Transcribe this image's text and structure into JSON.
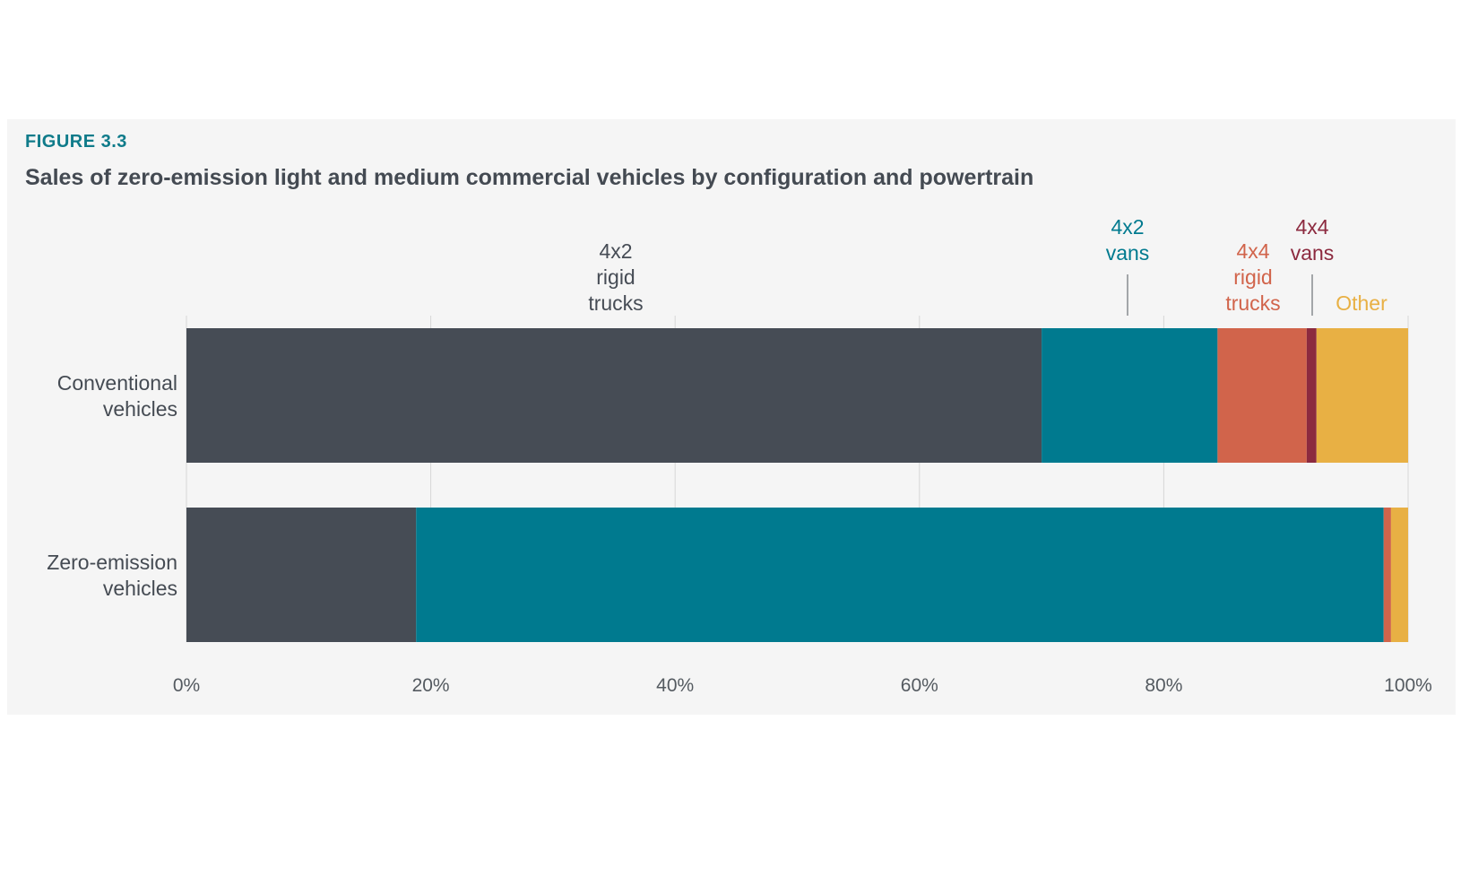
{
  "figure": {
    "label": "FIGURE 3.3",
    "title": "Sales of zero-emission light and medium commercial vehicles by configuration and powertrain"
  },
  "chart_data": {
    "type": "bar",
    "orientation": "horizontal",
    "stacked": true,
    "percent": true,
    "categories": [
      "Conventional vehicles",
      "Zero-emission vehicles"
    ],
    "category_lines": [
      [
        "Conventional",
        "vehicles"
      ],
      [
        "Zero-emission",
        "vehicles"
      ]
    ],
    "series": [
      {
        "name": "4x2 rigid trucks",
        "lines": [
          "4x2",
          "rigid",
          "trucks"
        ],
        "color": "#464c55",
        "values": [
          70.0,
          18.8
        ]
      },
      {
        "name": "4x2 vans",
        "lines": [
          "4x2",
          "vans"
        ],
        "color": "#007a8f",
        "values": [
          14.4,
          79.2
        ]
      },
      {
        "name": "4x4 rigid trucks",
        "lines": [
          "4x4",
          "rigid",
          "trucks"
        ],
        "color": "#d1644b",
        "values": [
          7.3,
          0.6
        ]
      },
      {
        "name": "4x4 vans",
        "lines": [
          "4x4",
          "vans"
        ],
        "color": "#8c2a3f",
        "values": [
          0.8,
          0.0
        ]
      },
      {
        "name": "Other",
        "lines": [
          "Other"
        ],
        "color": "#e8b044",
        "values": [
          7.5,
          1.4
        ]
      }
    ],
    "xlim": [
      0,
      100
    ],
    "xticks": [
      0,
      20,
      40,
      60,
      80,
      100
    ],
    "xtick_labels": [
      "0%",
      "20%",
      "40%",
      "60%",
      "80%",
      "100%"
    ],
    "grid": true,
    "legend": "direct labels above top bar"
  }
}
